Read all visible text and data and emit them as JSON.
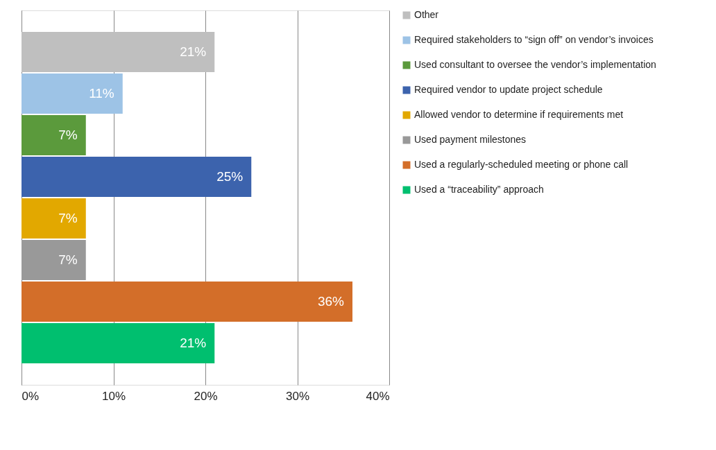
{
  "chart_data": {
    "type": "bar",
    "orientation": "horizontal",
    "categories": [
      null
    ],
    "series": [
      {
        "name": "Other",
        "color": "#bfbfbf",
        "values": [
          21
        ],
        "value_labels": [
          "21%"
        ]
      },
      {
        "name": "Required stakeholders to “sign off” on vendor’s invoices",
        "color": "#9dc3e6",
        "values": [
          11
        ],
        "value_labels": [
          "11%"
        ]
      },
      {
        "name": "Used consultant to oversee the vendor’s implementation",
        "color": "#5b9a3c",
        "values": [
          7
        ],
        "value_labels": [
          "7%"
        ]
      },
      {
        "name": "Required vendor to update project schedule",
        "color": "#3c63ad",
        "values": [
          25
        ],
        "value_labels": [
          "25%"
        ]
      },
      {
        "name": "Allowed vendor to determine if requirements met",
        "color": "#e2a800",
        "values": [
          7
        ],
        "value_labels": [
          "7%"
        ]
      },
      {
        "name": "Used payment milestones",
        "color": "#999999",
        "values": [
          7
        ],
        "value_labels": [
          "7%"
        ]
      },
      {
        "name": "Used a regularly-scheduled meeting or phone call",
        "color": "#d36e29",
        "values": [
          36
        ],
        "value_labels": [
          "36%"
        ]
      },
      {
        "name": "Used a “traceability” approach",
        "color": "#00bf6f",
        "values": [
          21
        ],
        "value_labels": [
          "21%"
        ]
      }
    ],
    "xlim": [
      0,
      40
    ],
    "xticks": [
      {
        "value": 0,
        "label": "0%"
      },
      {
        "value": 10,
        "label": "10%"
      },
      {
        "value": 20,
        "label": "20%"
      },
      {
        "value": 30,
        "label": "30%"
      },
      {
        "value": 40,
        "label": "40%"
      }
    ],
    "grid": "x",
    "legend": "right"
  }
}
